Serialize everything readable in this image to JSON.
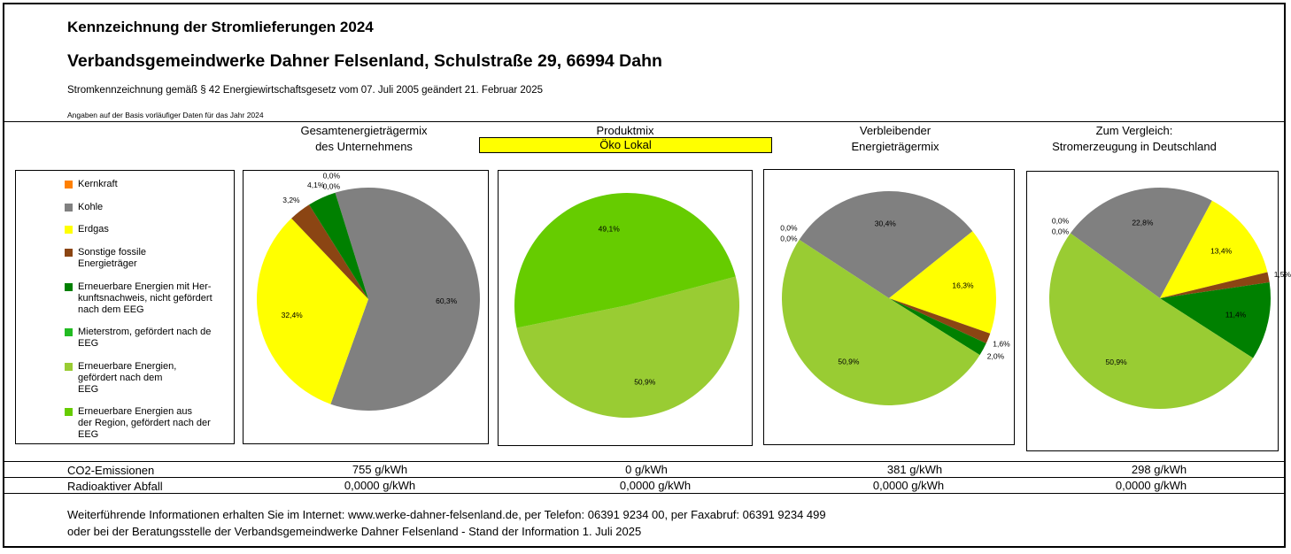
{
  "header": {
    "title": "Kennzeichnung der Stromlieferungen 2024",
    "company": "Verbandsgemeindwerke Dahner Felsenland, Schulstraße 29, 66994 Dahn",
    "legal": "Stromkennzeichnung gemäß § 42 Energiewirtschaftsgesetz vom 07. Juli 2005 geändert 21. Februar 2025",
    "basis": "Angaben auf der Basis vorläufiger Daten für das Jahr 2024"
  },
  "columns": {
    "company_mix": "Gesamtenergieträgermix\ndes Unternehmens",
    "product_mix": "Produktmix",
    "product_name": "Öko Lokal",
    "residual_mix": "Verbleibender\nEnergieträgermix",
    "comparison": "Zum Vergleich:\nStromerzeugung in Deutschland"
  },
  "legend": [
    {
      "label": "Kernkraft",
      "color": "#ff8000"
    },
    {
      "label": "Kohle",
      "color": "#808080"
    },
    {
      "label": "Erdgas",
      "color": "#ffff00"
    },
    {
      "label": "Sonstige fossile\nEnergieträger",
      "color": "#8b4513"
    },
    {
      "label": "Erneuerbare Energien mit Her-\nkunftsnachweis, nicht gefördert\nnach dem EEG",
      "color": "#008000"
    },
    {
      "label": "Mieterstrom, gefördert nach de\nEEG",
      "color": "#22bb22"
    },
    {
      "label": "Erneuerbare Energien,\ngefördert nach dem\nEEG",
      "color": "#99cc33"
    },
    {
      "label": "Erneuerbare Energien aus\nder Region, gefördert nach der\nEEG",
      "color": "#66cc00"
    }
  ],
  "chart_data": [
    {
      "type": "pie",
      "title": "Gesamtenergieträgermix des Unternehmens",
      "slices": [
        {
          "category": "Kohle",
          "value": 60.3,
          "label": "60,3%",
          "color": "#808080"
        },
        {
          "category": "Erdgas",
          "value": 32.4,
          "label": "32,4%",
          "color": "#ffff00"
        },
        {
          "category": "Sonstige fossile Energieträger",
          "value": 3.2,
          "label": "3,2%",
          "color": "#8b4513"
        },
        {
          "category": "Erneuerbare Energien mit Herkunftsnachweis",
          "value": 4.1,
          "label": "4,1%",
          "color": "#008000"
        },
        {
          "category": "Kernkraft",
          "value": 0.0,
          "label": "0,0%",
          "color": "#ff8000"
        },
        {
          "category": "Mieterstrom",
          "value": 0.0,
          "label": "0,0%",
          "color": "#22bb22"
        }
      ]
    },
    {
      "type": "pie",
      "title": "Produktmix Öko Lokal",
      "slices": [
        {
          "category": "Erneuerbare Energien, gefördert nach dem EEG",
          "value": 50.9,
          "label": "50,9%",
          "color": "#99cc33"
        },
        {
          "category": "Erneuerbare Energien aus der Region",
          "value": 49.1,
          "label": "49,1%",
          "color": "#66cc00"
        }
      ]
    },
    {
      "type": "pie",
      "title": "Verbleibender Energieträgermix",
      "slices": [
        {
          "category": "Kohle",
          "value": 30.4,
          "label": "30,4%",
          "color": "#808080"
        },
        {
          "category": "Erdgas",
          "value": 16.3,
          "label": "16,3%",
          "color": "#ffff00"
        },
        {
          "category": "Sonstige fossile Energieträger",
          "value": 1.6,
          "label": "1,6%",
          "color": "#8b4513"
        },
        {
          "category": "Erneuerbare Energien mit Herkunftsnachweis",
          "value": 2.0,
          "label": "2,0%",
          "color": "#008000"
        },
        {
          "category": "Erneuerbare Energien, gefördert nach dem EEG",
          "value": 50.9,
          "label": "50,9%",
          "color": "#99cc33"
        },
        {
          "category": "Kernkraft",
          "value": 0.0,
          "label": "0,0%",
          "color": "#ff8000"
        },
        {
          "category": "Mieterstrom",
          "value": 0.0,
          "label": "0,0%",
          "color": "#22bb22"
        }
      ]
    },
    {
      "type": "pie",
      "title": "Zum Vergleich: Stromerzeugung in Deutschland",
      "slices": [
        {
          "category": "Kohle",
          "value": 22.8,
          "label": "22,8%",
          "color": "#808080"
        },
        {
          "category": "Erdgas",
          "value": 13.4,
          "label": "13,4%",
          "color": "#ffff00"
        },
        {
          "category": "Sonstige fossile Energieträger",
          "value": 1.5,
          "label": "1,5%",
          "color": "#8b4513"
        },
        {
          "category": "Erneuerbare Energien mit Herkunftsnachweis",
          "value": 11.4,
          "label": "11,4%",
          "color": "#008000"
        },
        {
          "category": "Erneuerbare Energien, gefördert nach dem EEG",
          "value": 50.9,
          "label": "50,9%",
          "color": "#99cc33"
        },
        {
          "category": "Kernkraft",
          "value": 0.0,
          "label": "0,0%",
          "color": "#ff8000"
        },
        {
          "category": "Mieterstrom",
          "value": 0.0,
          "label": "0,0%",
          "color": "#22bb22"
        }
      ]
    }
  ],
  "emissions": {
    "co2_label": "CO2-Emissionen",
    "co2_values": [
      "755 g/kWh",
      "0 g/kWh",
      "381 g/kWh",
      "298 g/kWh"
    ],
    "waste_label": "Radioaktiver Abfall",
    "waste_values": [
      "0,0000 g/kWh",
      "0,0000 g/kWh",
      "0,0000 g/kWh",
      "0,0000 g/kWh"
    ]
  },
  "footer": {
    "line1": "Weiterführende Informationen erhalten Sie im Internet: www.werke-dahner-felsenland.de, per Telefon: 06391 9234 00, per Faxabruf: 06391 9234 499",
    "line2": "oder bei der Beratungsstelle der Verbandsgemeindwerke Dahner Felsenland - Stand der Information 1. Juli 2025"
  }
}
